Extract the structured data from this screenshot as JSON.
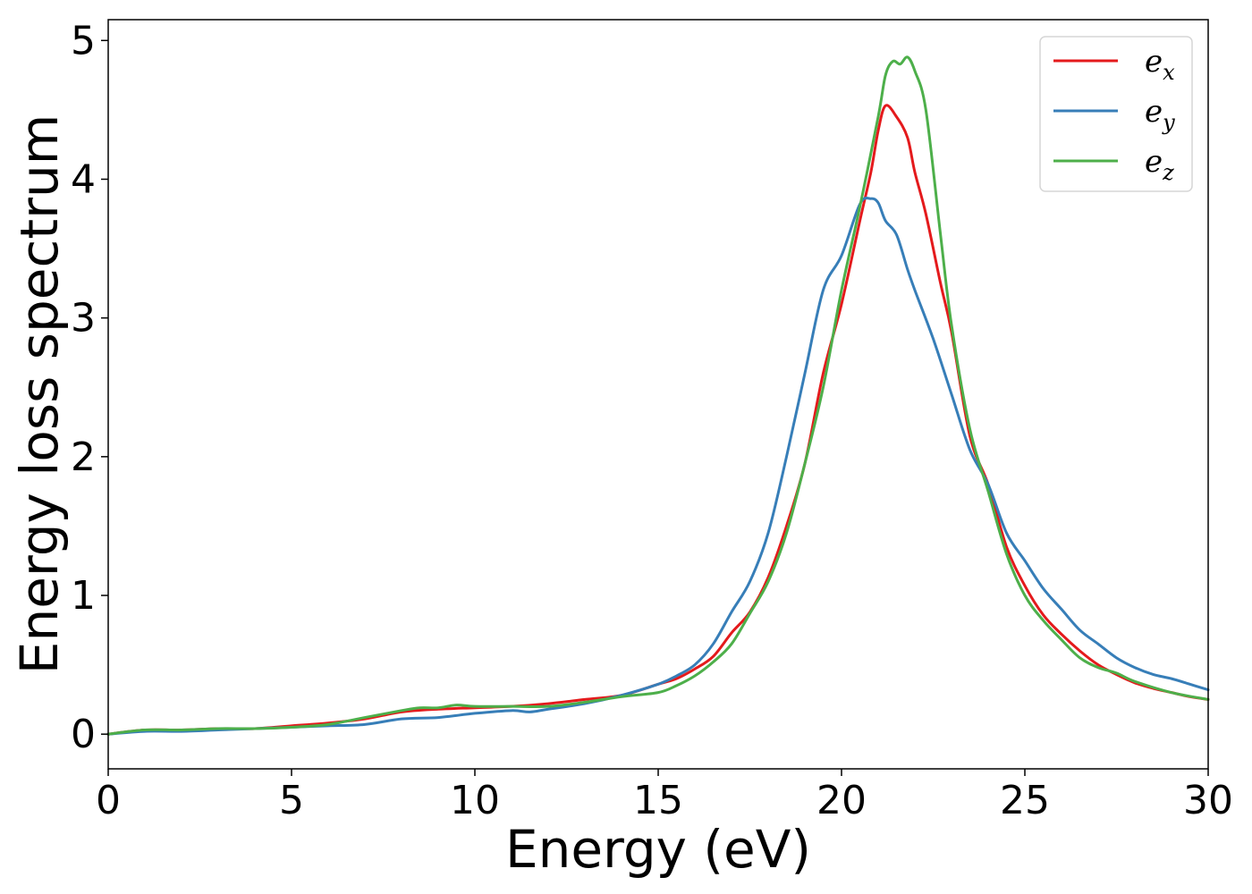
{
  "chart_data": {
    "type": "line",
    "title": "",
    "xlabel": "Energy (eV)",
    "ylabel": "Energy loss spectrum",
    "xlim": [
      0,
      30
    ],
    "ylim": [
      -0.25,
      5.15
    ],
    "xticks": [
      0,
      5,
      10,
      15,
      20,
      25,
      30
    ],
    "xtick_labels": [
      "0",
      "5",
      "10",
      "15",
      "20",
      "25",
      "30"
    ],
    "yticks": [
      0,
      1,
      2,
      3,
      4,
      5
    ],
    "ytick_labels": [
      "0",
      "1",
      "2",
      "3",
      "4",
      "5"
    ],
    "grid": false,
    "legend": {
      "position": "top-right"
    },
    "series": [
      {
        "name": "e_x",
        "base": "e",
        "sub": "x",
        "color": "#e41a1c",
        "x": [
          0,
          1,
          2,
          3,
          4,
          5,
          6,
          7,
          8,
          9,
          10,
          11,
          12,
          13,
          14,
          15,
          15.5,
          16,
          16.5,
          17,
          17.5,
          18,
          18.5,
          19,
          19.5,
          20,
          20.5,
          20.8,
          21,
          21.2,
          21.5,
          21.8,
          22,
          22.3,
          22.7,
          23,
          23.5,
          24,
          24.5,
          25,
          25.5,
          26,
          26.5,
          27,
          27.5,
          28,
          28.5,
          29,
          29.5,
          30
        ],
        "y": [
          0,
          0.03,
          0.03,
          0.04,
          0.04,
          0.06,
          0.08,
          0.11,
          0.16,
          0.18,
          0.19,
          0.2,
          0.22,
          0.25,
          0.28,
          0.36,
          0.4,
          0.47,
          0.56,
          0.73,
          0.88,
          1.13,
          1.5,
          1.95,
          2.6,
          3.1,
          3.7,
          4.05,
          4.35,
          4.53,
          4.45,
          4.3,
          4.05,
          3.75,
          3.25,
          2.9,
          2.15,
          1.8,
          1.35,
          1.07,
          0.86,
          0.72,
          0.6,
          0.5,
          0.43,
          0.37,
          0.33,
          0.3,
          0.27,
          0.25
        ]
      },
      {
        "name": "e_y",
        "base": "e",
        "sub": "y",
        "color": "#377eb8",
        "x": [
          0,
          1,
          2,
          3,
          4,
          5,
          6,
          7,
          8,
          9,
          10,
          11,
          11.5,
          12,
          13,
          14,
          15,
          15.5,
          16,
          16.5,
          17,
          17.5,
          18,
          18.5,
          19,
          19.5,
          20,
          20.5,
          20.8,
          21,
          21.2,
          21.5,
          21.8,
          22,
          22.5,
          23,
          23.5,
          24,
          24.5,
          25,
          25.5,
          26,
          26.5,
          27,
          27.5,
          28,
          28.5,
          29,
          29.5,
          30
        ],
        "y": [
          0,
          0.02,
          0.02,
          0.03,
          0.04,
          0.05,
          0.06,
          0.07,
          0.11,
          0.12,
          0.15,
          0.17,
          0.16,
          0.18,
          0.22,
          0.28,
          0.36,
          0.42,
          0.5,
          0.65,
          0.88,
          1.1,
          1.45,
          2.0,
          2.6,
          3.2,
          3.45,
          3.82,
          3.86,
          3.83,
          3.7,
          3.6,
          3.35,
          3.2,
          2.85,
          2.45,
          2.05,
          1.8,
          1.45,
          1.25,
          1.05,
          0.9,
          0.75,
          0.65,
          0.55,
          0.48,
          0.43,
          0.4,
          0.36,
          0.32
        ]
      },
      {
        "name": "e_z",
        "base": "e",
        "sub": "z",
        "color": "#4daf4a",
        "x": [
          0,
          1,
          2,
          3,
          4,
          5,
          6,
          7,
          8,
          8.5,
          9,
          9.5,
          10,
          11,
          12,
          13,
          14,
          15,
          15.5,
          16,
          16.5,
          17,
          17.5,
          18,
          18.5,
          19,
          19.5,
          20,
          20.5,
          21,
          21.2,
          21.4,
          21.6,
          21.8,
          22,
          22.3,
          22.7,
          23,
          23.5,
          24,
          24.5,
          25,
          25.5,
          26,
          26.5,
          27,
          27.5,
          28,
          29,
          30
        ],
        "y": [
          0,
          0.03,
          0.03,
          0.04,
          0.04,
          0.05,
          0.07,
          0.12,
          0.17,
          0.19,
          0.19,
          0.21,
          0.2,
          0.2,
          0.2,
          0.23,
          0.27,
          0.3,
          0.35,
          0.42,
          0.52,
          0.65,
          0.87,
          1.1,
          1.45,
          1.95,
          2.5,
          3.2,
          3.8,
          4.45,
          4.75,
          4.85,
          4.83,
          4.88,
          4.78,
          4.5,
          3.6,
          2.95,
          2.2,
          1.75,
          1.3,
          1.0,
          0.82,
          0.68,
          0.55,
          0.48,
          0.44,
          0.38,
          0.3,
          0.25
        ]
      }
    ]
  }
}
